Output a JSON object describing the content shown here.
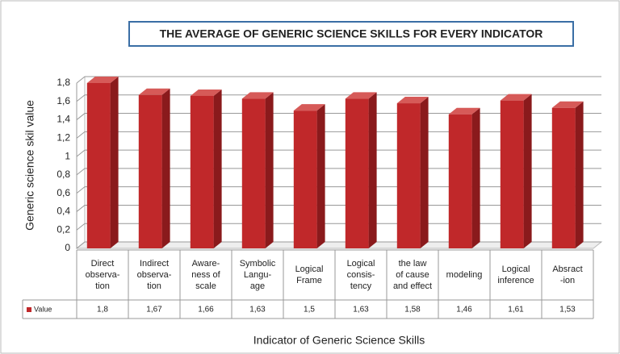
{
  "chart_data": {
    "type": "bar",
    "title": "THE AVERAGE OF GENERIC SCIENCE SKILLS FOR EVERY INDICATOR",
    "x_label": "Indicator of Generic Science Skills",
    "y_label": "Generic science skil value",
    "categories": [
      "Direct\nobserva-\ntion",
      "Indirect\nobserva-\ntion",
      "Aware-\nness of\nscale",
      "Symbolic\nLangu-\nage",
      "Logical\nFrame",
      "Logical\nconsis-\ntency",
      "the law\nof cause\nand effect",
      "modeling",
      "Logical\ninference",
      "Absract\n-ion"
    ],
    "series": [
      {
        "name": "Value",
        "color": "#c0282a",
        "values": [
          1.8,
          1.67,
          1.66,
          1.63,
          1.5,
          1.63,
          1.58,
          1.46,
          1.61,
          1.53
        ],
        "value_labels": [
          "1,8",
          "1,67",
          "1,66",
          "1,63",
          "1,5",
          "1,63",
          "1,58",
          "1,46",
          "1,61",
          "1,53"
        ]
      }
    ],
    "ylim": [
      0,
      1.8
    ],
    "yticks": [
      0,
      {
        "value": 0.2,
        "label": "0,2"
      },
      {
        "value": 0.4,
        "label": "0,4"
      },
      {
        "value": 0.6,
        "label": "0,6"
      },
      {
        "value": 0.8,
        "label": "0,8"
      },
      1,
      {
        "value": 1.2,
        "label": "1,2"
      },
      {
        "value": 1.4,
        "label": "1,4"
      },
      {
        "value": 1.6,
        "label": "1,6"
      },
      {
        "value": 1.8,
        "label": "1,8"
      }
    ],
    "grid": true
  }
}
